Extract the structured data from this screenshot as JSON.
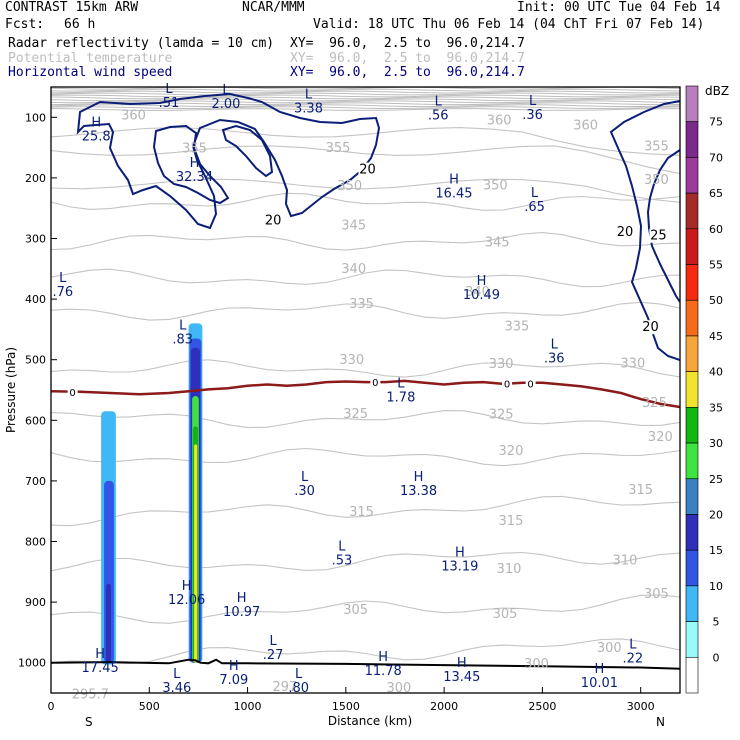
{
  "header": {
    "model": "CONTRAST 15km ARW",
    "org": "NCAR/MMM",
    "init": "Init: 00 UTC Tue 04 Feb 14",
    "fcst_label": "Fcst:",
    "fcst_value": "66 h",
    "valid": "Valid: 18 UTC Thu 06 Feb 14 (04 ChT Fri 07 Feb 14)",
    "fields": [
      {
        "name": "Radar reflectivity (lamda = 10 cm)",
        "xy": "XY=  96.0,  2.5 to  96.0,214.7",
        "color": "#000000"
      },
      {
        "name": "Potential temperature",
        "xy": "XY=  96.0,  2.5 to  96.0,214.7",
        "color": "#bdbdbd"
      },
      {
        "name": "Horizontal wind speed",
        "xy": "XY=  96.0,  2.5 to  96.0,214.7",
        "color": "#000080"
      }
    ]
  },
  "chart_data": {
    "type": "cross-section",
    "xlabel": "Distance (km)",
    "ylabel": "Pressure (hPa)",
    "xlim": [
      0,
      3200
    ],
    "ylim_hpa": [
      50,
      1050
    ],
    "x_ticks": [
      0,
      500,
      1000,
      1500,
      2000,
      2500,
      3000
    ],
    "y_ticks": [
      100,
      200,
      300,
      400,
      500,
      600,
      700,
      800,
      900,
      1000
    ],
    "x_end_labels": {
      "left": "S",
      "right": "N"
    },
    "colorbar": {
      "unit": "dBZ",
      "levels": [
        0,
        5,
        10,
        15,
        20,
        25,
        30,
        35,
        40,
        45,
        50,
        55,
        60,
        65,
        70,
        75
      ],
      "colors": [
        "#ffffff",
        "#97fbfb",
        "#3fb8f5",
        "#3355e6",
        "#2f2fba",
        "#3a7fbf",
        "#3fe33f",
        "#11b611",
        "#f2e32e",
        "#f5a53b",
        "#f46c1a",
        "#f52b0f",
        "#c91b1b",
        "#a52a2a",
        "#9b3b9b",
        "#7b2a8c",
        "#b77dbd"
      ]
    },
    "theta_labels": [
      {
        "text": "360",
        "x": 420,
        "p": 104
      },
      {
        "text": "355",
        "x": 730,
        "p": 158
      },
      {
        "text": "360",
        "x": 2280,
        "p": 112
      },
      {
        "text": "360",
        "x": 2720,
        "p": 120
      },
      {
        "text": "355",
        "x": 1460,
        "p": 157
      },
      {
        "text": "355",
        "x": 3080,
        "p": 155
      },
      {
        "text": "350",
        "x": 1520,
        "p": 220
      },
      {
        "text": "350",
        "x": 2260,
        "p": 219
      },
      {
        "text": "350",
        "x": 3080,
        "p": 210
      },
      {
        "text": "345",
        "x": 1540,
        "p": 285
      },
      {
        "text": "345",
        "x": 2270,
        "p": 313
      },
      {
        "text": "340",
        "x": 1540,
        "p": 357
      },
      {
        "text": "340",
        "x": 2170,
        "p": 395
      },
      {
        "text": "335",
        "x": 1580,
        "p": 415
      },
      {
        "text": "335",
        "x": 2370,
        "p": 452
      },
      {
        "text": "330",
        "x": 1530,
        "p": 507
      },
      {
        "text": "330",
        "x": 2290,
        "p": 514
      },
      {
        "text": "330",
        "x": 2960,
        "p": 513
      },
      {
        "text": "325",
        "x": 1550,
        "p": 596
      },
      {
        "text": "325",
        "x": 2290,
        "p": 597
      },
      {
        "text": "325",
        "x": 3070,
        "p": 578
      },
      {
        "text": "320",
        "x": 2340,
        "p": 657
      },
      {
        "text": "320",
        "x": 3100,
        "p": 634
      },
      {
        "text": "315",
        "x": 1580,
        "p": 758
      },
      {
        "text": "315",
        "x": 2340,
        "p": 773
      },
      {
        "text": "315",
        "x": 3000,
        "p": 722
      },
      {
        "text": "310",
        "x": 2330,
        "p": 852
      },
      {
        "text": "310",
        "x": 2920,
        "p": 838
      },
      {
        "text": "305",
        "x": 1550,
        "p": 920
      },
      {
        "text": "305",
        "x": 2310,
        "p": 926
      },
      {
        "text": "305",
        "x": 3080,
        "p": 893
      },
      {
        "text": "300",
        "x": 2470,
        "p": 1009
      },
      {
        "text": "300",
        "x": 2840,
        "p": 982
      },
      {
        "text": "300",
        "x": 1770,
        "p": 1048
      },
      {
        "text": "295.7",
        "x": 200,
        "p": 1059
      },
      {
        "text": "297",
        "x": 1190,
        "p": 1047
      }
    ],
    "wind_labels": [
      {
        "text": "20",
        "x": 1610,
        "p": 193
      },
      {
        "text": "20",
        "x": 1130,
        "p": 277
      },
      {
        "text": "20",
        "x": 2920,
        "p": 296
      },
      {
        "text": "25",
        "x": 3090,
        "p": 302
      },
      {
        "text": "20",
        "x": 3050,
        "p": 453
      }
    ],
    "extrema": [
      {
        "type": "L",
        "value": ".51",
        "x": 600,
        "p": 83
      },
      {
        "type": "L",
        "value": "2.00",
        "x": 890,
        "p": 85
      },
      {
        "type": "L",
        "value": "3.38",
        "x": 1310,
        "p": 92
      },
      {
        "type": "L",
        "value": ".56",
        "x": 1970,
        "p": 104
      },
      {
        "type": "L",
        "value": ".36",
        "x": 2450,
        "p": 103
      },
      {
        "type": "H",
        "value": "25.8",
        "x": 230,
        "p": 138
      },
      {
        "type": "H",
        "value": "32.34",
        "x": 730,
        "p": 205
      },
      {
        "type": "H",
        "value": "16.45",
        "x": 2050,
        "p": 232
      },
      {
        "type": "L",
        "value": ".65",
        "x": 2460,
        "p": 255
      },
      {
        "type": "L",
        "value": ".76",
        "x": 60,
        "p": 395
      },
      {
        "type": "H",
        "value": "10.49",
        "x": 2190,
        "p": 400
      },
      {
        "type": "L",
        "value": ".83",
        "x": 670,
        "p": 473
      },
      {
        "type": "L",
        "value": ".36",
        "x": 2560,
        "p": 505
      },
      {
        "type": "L",
        "value": "1.78",
        "x": 1780,
        "p": 569
      },
      {
        "type": "L",
        "value": ".30",
        "x": 1290,
        "p": 723
      },
      {
        "type": "H",
        "value": "13.38",
        "x": 1870,
        "p": 723
      },
      {
        "type": "L",
        "value": ".53",
        "x": 1480,
        "p": 838
      },
      {
        "type": "H",
        "value": "13.19",
        "x": 2080,
        "p": 848
      },
      {
        "type": "H",
        "value": "12.06",
        "x": 690,
        "p": 903
      },
      {
        "type": "H",
        "value": "10.97",
        "x": 970,
        "p": 923
      },
      {
        "type": "L",
        "value": ".27",
        "x": 1130,
        "p": 994
      },
      {
        "type": "L",
        "value": ".22",
        "x": 2960,
        "p": 1000
      },
      {
        "type": "H",
        "value": "17.45",
        "x": 250,
        "p": 1015
      },
      {
        "type": "H",
        "value": "11.78",
        "x": 1690,
        "p": 1020
      },
      {
        "type": "H",
        "value": "13.45",
        "x": 2090,
        "p": 1030
      },
      {
        "type": "H",
        "value": "7.09",
        "x": 930,
        "p": 1035
      },
      {
        "type": "H",
        "value": "10.01",
        "x": 2790,
        "p": 1040
      },
      {
        "type": "L",
        "value": "3.46",
        "x": 640,
        "p": 1048
      },
      {
        "type": "L",
        "value": ".80",
        "x": 1260,
        "p": 1048
      }
    ],
    "freezing_level": {
      "label": "0",
      "points": [
        [
          0,
          552
        ],
        [
          150,
          553
        ],
        [
          300,
          555
        ],
        [
          450,
          557
        ],
        [
          600,
          555
        ],
        [
          700,
          552
        ],
        [
          800,
          549
        ],
        [
          900,
          547
        ],
        [
          1000,
          543
        ],
        [
          1100,
          541
        ],
        [
          1200,
          543
        ],
        [
          1300,
          541
        ],
        [
          1400,
          537
        ],
        [
          1500,
          536
        ],
        [
          1600,
          537
        ],
        [
          1700,
          537
        ],
        [
          1800,
          535
        ],
        [
          1900,
          538
        ],
        [
          2000,
          541
        ],
        [
          2100,
          538
        ],
        [
          2200,
          537
        ],
        [
          2300,
          540
        ],
        [
          2400,
          538
        ],
        [
          2500,
          538
        ],
        [
          2600,
          541
        ],
        [
          2700,
          544
        ],
        [
          2800,
          549
        ],
        [
          2900,
          555
        ],
        [
          3000,
          565
        ],
        [
          3100,
          573
        ],
        [
          3200,
          578
        ]
      ],
      "label_points": [
        [
          110,
          553
        ],
        [
          1650,
          537
        ],
        [
          2320,
          539
        ],
        [
          2440,
          539
        ]
      ]
    },
    "surface": {
      "points": [
        [
          0,
          1000
        ],
        [
          300,
          999
        ],
        [
          600,
          1001
        ],
        [
          700,
          995
        ],
        [
          735,
          996
        ],
        [
          760,
          1000
        ],
        [
          800,
          1001
        ],
        [
          840,
          995
        ],
        [
          870,
          1001
        ],
        [
          1000,
          1001
        ],
        [
          1500,
          1002
        ],
        [
          2000,
          1004
        ],
        [
          2500,
          1006
        ],
        [
          3000,
          1008
        ],
        [
          3200,
          1010
        ]
      ]
    },
    "reflectivity_cells": [
      {
        "x0": 255,
        "x1": 330,
        "p0": 585,
        "p1": 1003,
        "dbz": 5
      },
      {
        "x0": 270,
        "x1": 320,
        "p0": 700,
        "p1": 1000,
        "dbz": 10
      },
      {
        "x0": 280,
        "x1": 305,
        "p0": 870,
        "p1": 1000,
        "dbz": 15
      },
      {
        "x0": 700,
        "x1": 770,
        "p0": 440,
        "p1": 1000,
        "dbz": 5
      },
      {
        "x0": 705,
        "x1": 765,
        "p0": 465,
        "p1": 1000,
        "dbz": 10
      },
      {
        "x0": 712,
        "x1": 758,
        "p0": 480,
        "p1": 1000,
        "dbz": 15
      },
      {
        "x0": 718,
        "x1": 752,
        "p0": 560,
        "p1": 1000,
        "dbz": 25
      },
      {
        "x0": 722,
        "x1": 748,
        "p0": 610,
        "p1": 1000,
        "dbz": 30
      },
      {
        "x0": 728,
        "x1": 744,
        "p0": 640,
        "p1": 1000,
        "dbz": 35
      }
    ]
  }
}
